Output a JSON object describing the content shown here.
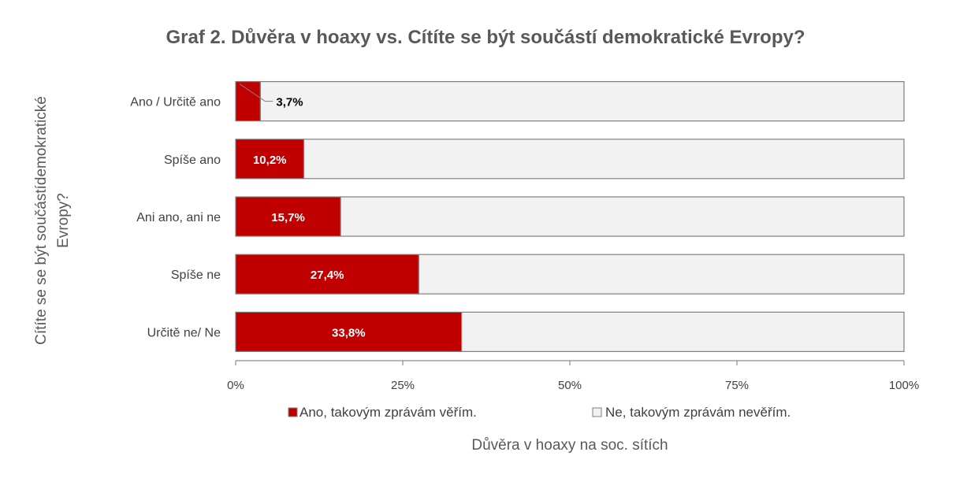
{
  "chart_data": {
    "type": "bar",
    "orientation": "horizontal",
    "stacked": "percent",
    "title": "Graf 2. Důvěra v hoaxy vs. Cítíte se být součástí demokratické Evropy?",
    "xlabel": "Důvěra v hoaxy na soc. sítích",
    "ylabel": "Cítíte se se být součástídemokratické Evropy?",
    "categories": [
      "Ano / Určitě ano",
      "Spíše ano",
      "Ani ano, ani ne",
      "Spíše ne",
      "Určitě ne/ Ne"
    ],
    "series": [
      {
        "name": "Ano, takovým zprávám věřím.",
        "values": [
          3.7,
          10.2,
          15.7,
          27.4,
          33.8
        ],
        "labels": [
          "3,7%",
          "10,2%",
          "15,7%",
          "27,4%",
          "33,8%"
        ],
        "color": "#c00000"
      },
      {
        "name": "Ne, takovým zprávám nevěřím.",
        "values": [
          96.3,
          89.8,
          84.3,
          72.6,
          66.2
        ],
        "color": "#f2f2f2"
      }
    ],
    "xlim": [
      0,
      100
    ],
    "xticks": [
      "0%",
      "25%",
      "50%",
      "75%",
      "100%"
    ],
    "legend": "bottom",
    "grid": false
  }
}
